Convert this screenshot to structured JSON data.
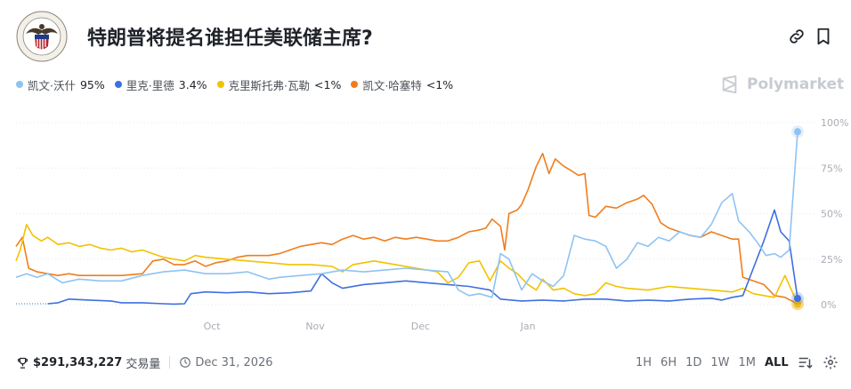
{
  "header": {
    "title": "特朗普将提名谁担任美联储主席?",
    "icons": [
      "link-icon",
      "bookmark-icon"
    ]
  },
  "legend": [
    {
      "name": "凯文·沃什",
      "value": "95%",
      "color": "#8ec3f3"
    },
    {
      "name": "里克·里德",
      "value": "3.4%",
      "color": "#3f6fe0"
    },
    {
      "name": "克里斯托弗·瓦勒",
      "value": "<1%",
      "color": "#f2c200"
    },
    {
      "name": "凯文·哈塞特",
      "value": "<1%",
      "color": "#f07d1c"
    }
  ],
  "brand": {
    "name": "Polymarket"
  },
  "footer": {
    "volume": "$291,343,227",
    "volume_label": "交易量",
    "end_date": "Dec 31, 2026",
    "ranges": [
      "1H",
      "6H",
      "1D",
      "1W",
      "1M",
      "ALL"
    ],
    "active_range": "ALL"
  },
  "chart_data": {
    "type": "line",
    "x_ticks": [
      "Oct",
      "Nov",
      "Dec",
      "Jan"
    ],
    "y_ticks": [
      "100%",
      "75%",
      "50%",
      "25%",
      "0%"
    ],
    "ylim": [
      0,
      100
    ],
    "grid": true,
    "series": [
      {
        "name": "凯文·沃什",
        "color": "#8ec3f3",
        "points": [
          [
            0,
            15
          ],
          [
            0.5,
            17
          ],
          [
            1,
            15
          ],
          [
            1.5,
            17
          ],
          [
            2.2,
            12
          ],
          [
            3,
            14
          ],
          [
            4,
            13
          ],
          [
            5,
            13
          ],
          [
            6,
            16
          ],
          [
            7,
            18
          ],
          [
            8,
            19
          ],
          [
            9,
            17
          ],
          [
            10,
            17
          ],
          [
            11,
            18
          ],
          [
            11.5,
            16
          ],
          [
            12,
            14
          ],
          [
            12.5,
            15
          ],
          [
            13.5,
            16
          ],
          [
            14.5,
            17
          ],
          [
            15.5,
            19
          ],
          [
            16.5,
            18
          ],
          [
            17.5,
            19
          ],
          [
            18.5,
            20
          ],
          [
            19.5,
            19
          ],
          [
            20.5,
            18
          ],
          [
            21,
            8
          ],
          [
            21.5,
            5
          ],
          [
            22,
            6
          ],
          [
            22.6,
            4
          ],
          [
            23,
            28
          ],
          [
            23.4,
            25
          ],
          [
            24,
            8
          ],
          [
            24.5,
            17
          ],
          [
            25,
            13
          ],
          [
            25.5,
            10
          ],
          [
            26,
            16
          ],
          [
            26.5,
            38
          ],
          [
            27,
            36
          ],
          [
            27.5,
            35
          ],
          [
            28,
            32
          ],
          [
            28.5,
            20
          ],
          [
            29,
            25
          ],
          [
            29.5,
            34
          ],
          [
            30,
            32
          ],
          [
            30.5,
            37
          ],
          [
            31,
            35
          ],
          [
            31.5,
            40
          ],
          [
            32,
            38
          ],
          [
            32.5,
            37
          ],
          [
            33,
            44
          ],
          [
            33.5,
            56
          ],
          [
            34,
            61
          ],
          [
            34.3,
            46
          ],
          [
            34.8,
            40
          ],
          [
            35.2,
            34
          ],
          [
            35.6,
            27
          ],
          [
            36,
            28
          ],
          [
            36.3,
            26
          ],
          [
            36.7,
            30
          ],
          [
            37.1,
            95
          ]
        ]
      },
      {
        "name": "里克·里德",
        "color": "#3f6fe0",
        "points": [
          [
            1.5,
            0.5
          ],
          [
            2,
            1
          ],
          [
            2.5,
            3
          ],
          [
            3.5,
            2.5
          ],
          [
            4.5,
            2
          ],
          [
            5,
            1
          ],
          [
            6,
            1
          ],
          [
            7,
            0.5
          ],
          [
            7.5,
            0.3
          ],
          [
            8,
            0.5
          ],
          [
            8.3,
            6
          ],
          [
            9,
            7
          ],
          [
            10,
            6.5
          ],
          [
            11,
            7
          ],
          [
            12,
            6
          ],
          [
            13,
            6.5
          ],
          [
            14,
            7.5
          ],
          [
            14.5,
            17
          ],
          [
            15,
            12
          ],
          [
            15.5,
            9
          ],
          [
            16.5,
            11
          ],
          [
            17.5,
            12
          ],
          [
            18.5,
            13
          ],
          [
            19.5,
            12
          ],
          [
            20.5,
            11
          ],
          [
            21.5,
            10
          ],
          [
            22.5,
            8
          ],
          [
            23,
            3
          ],
          [
            24,
            2
          ],
          [
            25,
            2.5
          ],
          [
            26,
            2
          ],
          [
            27,
            3
          ],
          [
            28,
            3
          ],
          [
            29,
            2
          ],
          [
            30,
            2.5
          ],
          [
            31,
            2
          ],
          [
            32,
            3
          ],
          [
            33,
            3.5
          ],
          [
            33.5,
            2.5
          ],
          [
            34,
            4
          ],
          [
            34.5,
            5
          ],
          [
            35,
            20
          ],
          [
            35.5,
            35
          ],
          [
            36,
            52
          ],
          [
            36.3,
            40
          ],
          [
            36.7,
            35
          ],
          [
            37.1,
            3.4
          ]
        ]
      },
      {
        "name": "克里斯托弗·瓦勒",
        "color": "#f2c200",
        "points": [
          [
            0,
            24
          ],
          [
            0.2,
            30
          ],
          [
            0.5,
            44
          ],
          [
            0.8,
            38
          ],
          [
            1.2,
            35
          ],
          [
            1.5,
            37
          ],
          [
            2,
            33
          ],
          [
            2.5,
            34
          ],
          [
            3,
            32
          ],
          [
            3.5,
            33
          ],
          [
            4,
            31
          ],
          [
            4.5,
            30
          ],
          [
            5,
            31
          ],
          [
            5.5,
            29
          ],
          [
            6,
            30
          ],
          [
            6.5,
            28
          ],
          [
            7,
            26
          ],
          [
            7.5,
            25
          ],
          [
            8,
            24
          ],
          [
            8.5,
            27
          ],
          [
            9,
            26
          ],
          [
            10,
            25
          ],
          [
            11,
            24
          ],
          [
            12,
            23
          ],
          [
            13,
            22
          ],
          [
            14,
            22
          ],
          [
            15,
            21
          ],
          [
            15.5,
            18
          ],
          [
            16,
            22
          ],
          [
            17,
            24
          ],
          [
            18,
            22
          ],
          [
            19,
            20
          ],
          [
            20,
            18
          ],
          [
            20.5,
            12
          ],
          [
            21,
            15
          ],
          [
            21.5,
            23
          ],
          [
            22,
            24
          ],
          [
            22.5,
            13
          ],
          [
            23,
            24
          ],
          [
            23.4,
            20
          ],
          [
            23.8,
            17
          ],
          [
            24.3,
            11
          ],
          [
            24.7,
            8
          ],
          [
            25,
            14
          ],
          [
            25.5,
            8
          ],
          [
            26,
            9
          ],
          [
            26.5,
            6
          ],
          [
            27,
            5
          ],
          [
            27.5,
            6
          ],
          [
            28,
            12
          ],
          [
            28.5,
            10
          ],
          [
            29,
            9
          ],
          [
            30,
            8
          ],
          [
            31,
            10
          ],
          [
            32,
            9
          ],
          [
            33,
            8
          ],
          [
            34,
            7
          ],
          [
            34.5,
            9
          ],
          [
            35,
            6
          ],
          [
            35.5,
            5
          ],
          [
            36,
            4
          ],
          [
            36.5,
            16
          ],
          [
            37.1,
            0.5
          ]
        ]
      },
      {
        "name": "凯文·哈塞特",
        "color": "#f07d1c",
        "points": [
          [
            0,
            32
          ],
          [
            0.3,
            37
          ],
          [
            0.6,
            20
          ],
          [
            1,
            18
          ],
          [
            1.5,
            17
          ],
          [
            2,
            16
          ],
          [
            2.5,
            17
          ],
          [
            3,
            16
          ],
          [
            4,
            16
          ],
          [
            5,
            16
          ],
          [
            6,
            17
          ],
          [
            6.5,
            24
          ],
          [
            7,
            25
          ],
          [
            7.5,
            22
          ],
          [
            8,
            22
          ],
          [
            8.5,
            24
          ],
          [
            9,
            21
          ],
          [
            9.5,
            23
          ],
          [
            10,
            24
          ],
          [
            10.5,
            26
          ],
          [
            11,
            27
          ],
          [
            12,
            27
          ],
          [
            12.5,
            28
          ],
          [
            13,
            30
          ],
          [
            13.5,
            32
          ],
          [
            14,
            33
          ],
          [
            14.5,
            34
          ],
          [
            15,
            33
          ],
          [
            15.5,
            36
          ],
          [
            16,
            38
          ],
          [
            16.5,
            36
          ],
          [
            17,
            37
          ],
          [
            17.5,
            35
          ],
          [
            18,
            37
          ],
          [
            18.5,
            36
          ],
          [
            19,
            37
          ],
          [
            19.5,
            36
          ],
          [
            20,
            35
          ],
          [
            20.5,
            35
          ],
          [
            21,
            37
          ],
          [
            21.5,
            40
          ],
          [
            22,
            41
          ],
          [
            22.3,
            42
          ],
          [
            22.6,
            47
          ],
          [
            23,
            43
          ],
          [
            23.2,
            30
          ],
          [
            23.4,
            50
          ],
          [
            23.8,
            52
          ],
          [
            24,
            55
          ],
          [
            24.3,
            63
          ],
          [
            24.7,
            76
          ],
          [
            25,
            83
          ],
          [
            25.3,
            72
          ],
          [
            25.6,
            80
          ],
          [
            26,
            76
          ],
          [
            26.3,
            74
          ],
          [
            26.7,
            71
          ],
          [
            27,
            72
          ],
          [
            27.2,
            49
          ],
          [
            27.5,
            48
          ],
          [
            28,
            54
          ],
          [
            28.5,
            53
          ],
          [
            29,
            56
          ],
          [
            29.5,
            58
          ],
          [
            29.8,
            60
          ],
          [
            30.2,
            55
          ],
          [
            30.6,
            45
          ],
          [
            31,
            42
          ],
          [
            31.5,
            40
          ],
          [
            32,
            38
          ],
          [
            32.5,
            37
          ],
          [
            33,
            40
          ],
          [
            33.5,
            38
          ],
          [
            34,
            36
          ],
          [
            34.3,
            36
          ],
          [
            34.5,
            15
          ],
          [
            35,
            13
          ],
          [
            35.5,
            11
          ],
          [
            36,
            5
          ],
          [
            36.5,
            4
          ],
          [
            37.1,
            0.3
          ]
        ]
      }
    ]
  }
}
